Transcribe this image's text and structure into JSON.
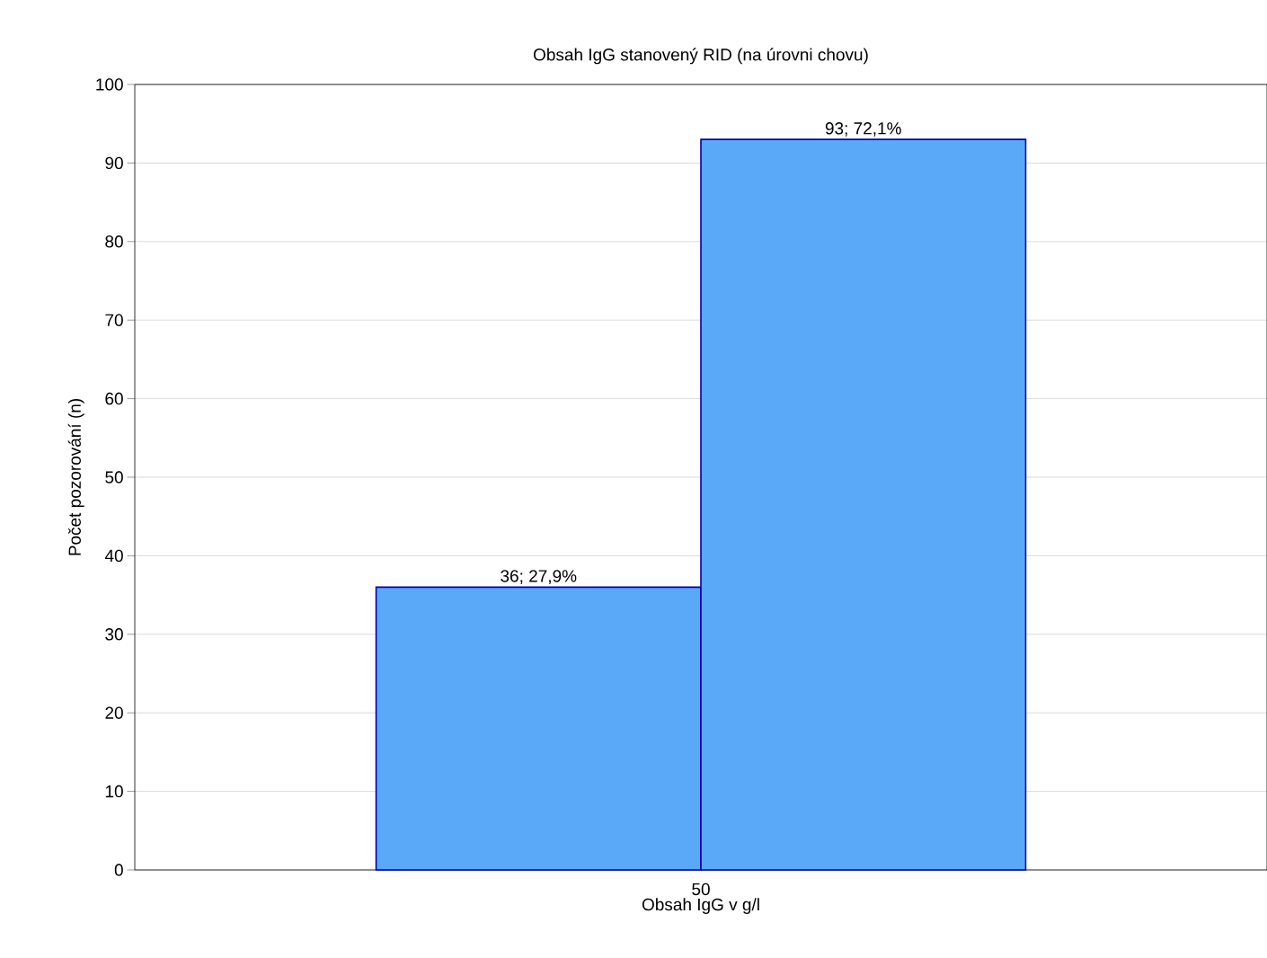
{
  "chart_data": {
    "type": "bar",
    "title": "Obsah IgG stanovený RID (na úrovni chovu)",
    "xlabel": "Obsah IgG v g/l",
    "ylabel": "Počet pozorování (n)",
    "categories": [
      null,
      null
    ],
    "values": [
      36,
      93
    ],
    "value_labels": [
      "36; 27,9%",
      "93; 72,1%"
    ],
    "annotations": [
      "50"
    ],
    "color": "#5aa8f8",
    "ylim": [
      0,
      100
    ],
    "yticks": [
      0,
      10,
      20,
      30,
      40,
      50,
      60,
      70,
      80,
      90,
      100
    ],
    "grid": "y"
  }
}
